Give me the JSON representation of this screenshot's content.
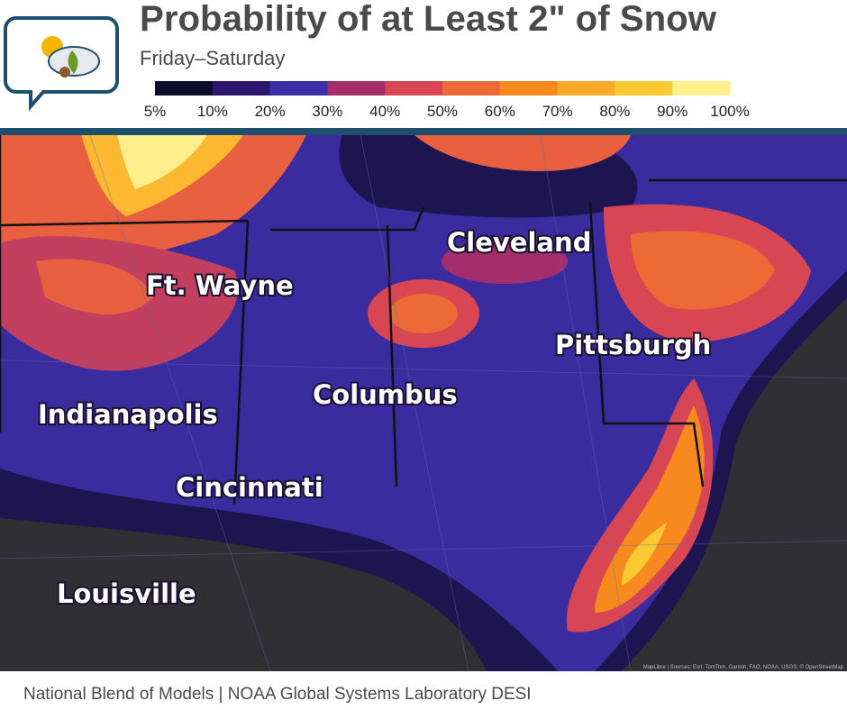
{
  "header": {
    "title": "Probability of at Least 2\" of Snow",
    "subtitle": "Friday–Saturday"
  },
  "legend": {
    "colors": [
      "#0f0b2a",
      "#2c1670",
      "#3b2ea6",
      "#a42e6c",
      "#d84654",
      "#ec6a35",
      "#f68a1e",
      "#f9aa28",
      "#fbca33",
      "#fdf28c"
    ],
    "labels": [
      "5%",
      "10%",
      "20%",
      "30%",
      "40%",
      "50%",
      "60%",
      "70%",
      "80%",
      "90%",
      "100%"
    ]
  },
  "map": {
    "cities": [
      "Cleveland",
      "Ft. Wayne",
      "Pittsburgh",
      "Columbus",
      "Indianapolis",
      "Cincinnati",
      "Louisville"
    ],
    "attribution": "MapLibre | Sources: Esri, TomTom, Garmin, FAO, NOAA, USGS, © OpenStreetMap"
  },
  "footer": "National Blend of Models | NOAA Global Systems Laboratory DESI"
}
